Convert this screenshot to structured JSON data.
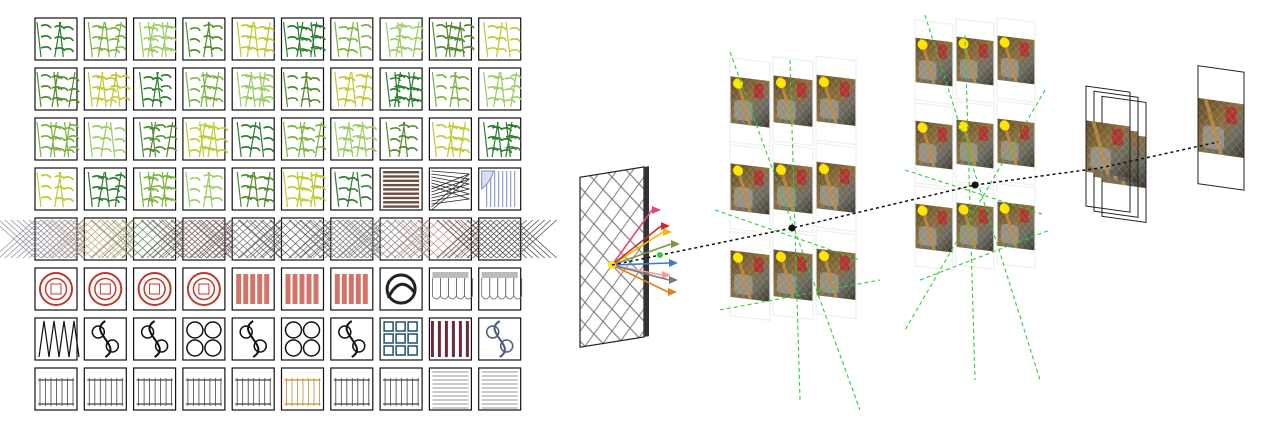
{
  "figure": {
    "pattern_grid": {
      "rows": 8,
      "cols": 10,
      "row_categories": [
        "bamboo",
        "bamboo",
        "bamboo",
        "bamboo-louver",
        "lattice",
        "paper-cut-lace",
        "ironwork",
        "fence-railing"
      ]
    },
    "pipeline": {
      "stages": [
        "source-pattern",
        "projection-grid-1",
        "projection-grid-2",
        "stacked-layers",
        "final-output"
      ],
      "ray_colors": [
        "#e8457a",
        "#f2b705",
        "#7a9a3a",
        "#d12a2a",
        "#3a7bd5",
        "#f59e9e",
        "#7a7a7a",
        "#e87b1e"
      ],
      "marker_color": "#ffe600",
      "guide_line_color": "#2ecc40",
      "connector_color": "#111111"
    }
  }
}
